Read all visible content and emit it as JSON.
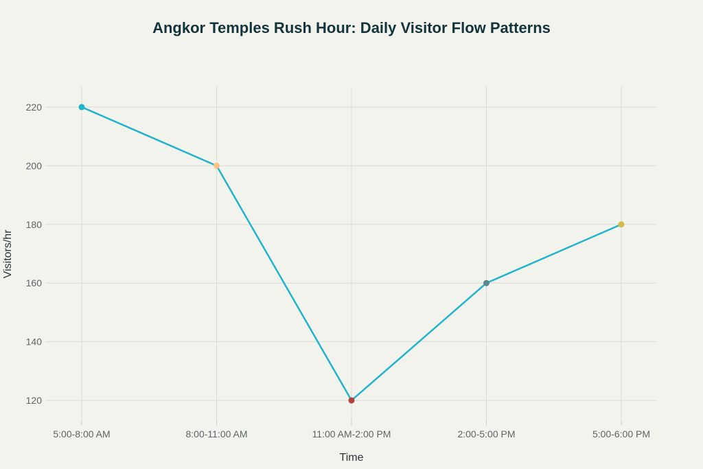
{
  "chart_data": {
    "type": "line",
    "title": "Angkor Temples Rush Hour: Daily Visitor Flow Patterns",
    "xlabel": "Time",
    "ylabel": "Visitors/hr",
    "categories": [
      "5:00-8:00 AM",
      "8:00-11:00 AM",
      "11:00 AM-2:00 PM",
      "2:00-5:00 PM",
      "5:00-6:00 PM"
    ],
    "series": [
      {
        "name": "Visitors/hr",
        "values": [
          220,
          200,
          120,
          160,
          180
        ],
        "line_color": "#1fb3cc",
        "marker_colors": [
          "#1fb3cc",
          "#ffc185",
          "#b4413c",
          "#5d878f",
          "#d2ba4c"
        ]
      }
    ],
    "yticks": [
      120,
      140,
      160,
      180,
      200,
      220
    ],
    "ylim": [
      113,
      227
    ],
    "grid": true,
    "legend": "none"
  }
}
